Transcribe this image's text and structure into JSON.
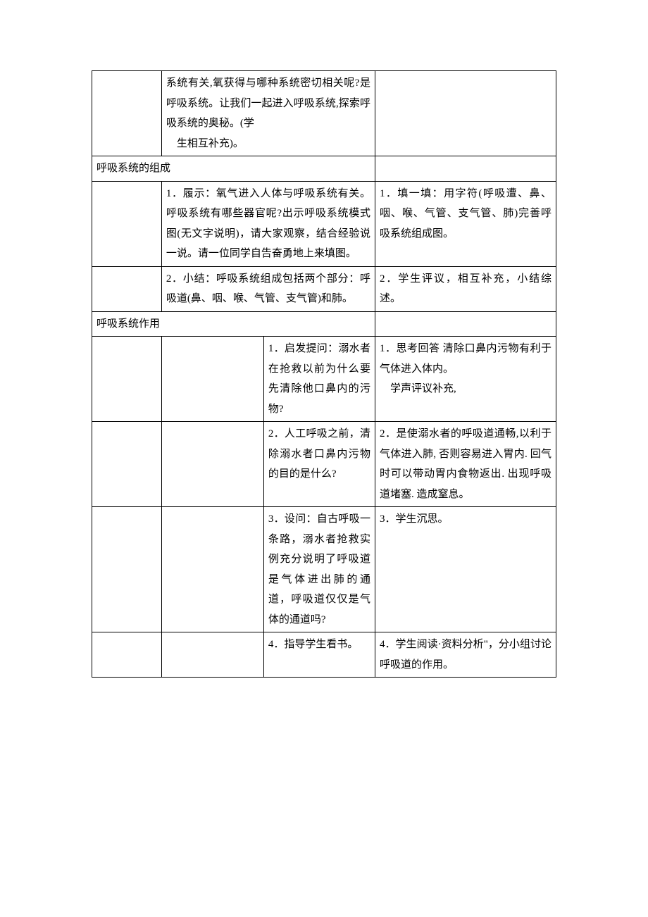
{
  "rows": {
    "row1": {
      "col2": "系统有关,氧获得与哪种系统密切相关呢?是呼吸系统。让我们一起进入呼吸系统,探索呼吸系统的奥秘。(学",
      "col2_indent": "生相互补充)。",
      "col3": ""
    },
    "section1": {
      "title": "呼吸系统的组成"
    },
    "row2": {
      "col2": "1．履示：氧气进入人体与呼吸系统有关。呼吸系统有哪些器官呢?出示呼吸系统模式图(无文字说明)，请大家观察，结合经验说一说。请一位同学自告奋勇地上来填图。",
      "col3": "1．填一填：用字符(呼吸遭、鼻、咽、喉、气管、支气管、肺)完善呼吸系统组成图。"
    },
    "row3": {
      "col2": "2．小结：呼吸系统组成包括两个部分：呼吸道(鼻、咽、喉、气管、支气管)和肺。",
      "col3": "2．学生评议，相互补充，小结综述。"
    },
    "section2": {
      "title": "呼吸系统作用"
    },
    "row4": {
      "col2": "1．启发提问：溺水者在抢救以前为什么要先清除他口鼻内的污物?",
      "col3_line1": "1．思考回答 清除口鼻内污物有利于气体进入体内。",
      "col3_line2": "学声评议补充,"
    },
    "row5": {
      "col2": "2．人工呼吸之前，清除溺水者口鼻内污物的目的是什么?",
      "col3": "2．是使溺水者的呼吸道通畅,以利于气体进入肺, 否则容易进入胃内. 回气时可以带动胃内食物返出. 出现呼吸道堵塞. 造成窒息。"
    },
    "row6": {
      "col2": "3．设问：自古呼吸一条路，溺水者抢救实例充分说明了呼吸道是气体进出肺的通道，呼吸道仅仅是气体的通道吗?",
      "col3": "3．学生沉思。"
    },
    "row7": {
      "col2": "4．指导学生看书。",
      "col3": "4．学生阅读·资料分析\"，分小组讨论呼吸道的作用。"
    }
  }
}
